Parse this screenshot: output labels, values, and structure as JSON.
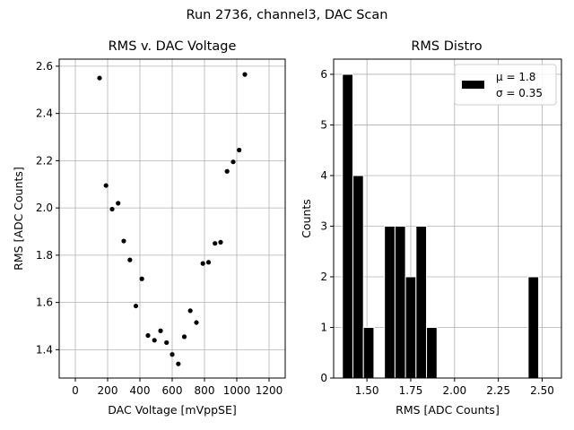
{
  "figure_title": "Run 2736, channel3, DAC Scan",
  "colors": {
    "marker": "#000000",
    "bar_fill": "#000000",
    "bar_edge": "#ffffff",
    "grid": "#b0b0b0"
  },
  "chart_data": [
    {
      "type": "scatter",
      "title": "RMS v. DAC Voltage",
      "xlabel": "DAC Voltage [mVppSE]",
      "ylabel": "RMS [ADC Counts]",
      "xlim": [
        -100,
        1300
      ],
      "ylim": [
        1.28,
        2.63
      ],
      "xticks": [
        0,
        200,
        400,
        600,
        800,
        1000,
        1200
      ],
      "yticks": [
        1.4,
        1.6,
        1.8,
        2.0,
        2.2,
        2.4,
        2.6
      ],
      "xtick_labels": [
        "0",
        "200",
        "400",
        "600",
        "800",
        "1000",
        "1200"
      ],
      "ytick_labels": [
        "1.4",
        "1.6",
        "1.8",
        "2.0",
        "2.2",
        "2.4",
        "2.6"
      ],
      "grid": true,
      "points": [
        {
          "x": 150,
          "y": 2.55
        },
        {
          "x": 190,
          "y": 2.095
        },
        {
          "x": 228,
          "y": 1.995
        },
        {
          "x": 265,
          "y": 2.02
        },
        {
          "x": 300,
          "y": 1.86
        },
        {
          "x": 338,
          "y": 1.78
        },
        {
          "x": 375,
          "y": 1.585
        },
        {
          "x": 412,
          "y": 1.7
        },
        {
          "x": 450,
          "y": 1.46
        },
        {
          "x": 490,
          "y": 1.44
        },
        {
          "x": 528,
          "y": 1.48
        },
        {
          "x": 565,
          "y": 1.43
        },
        {
          "x": 600,
          "y": 1.38
        },
        {
          "x": 638,
          "y": 1.34
        },
        {
          "x": 675,
          "y": 1.455
        },
        {
          "x": 712,
          "y": 1.565
        },
        {
          "x": 750,
          "y": 1.515
        },
        {
          "x": 790,
          "y": 1.765
        },
        {
          "x": 825,
          "y": 1.77
        },
        {
          "x": 865,
          "y": 1.85
        },
        {
          "x": 900,
          "y": 1.855
        },
        {
          "x": 940,
          "y": 2.155
        },
        {
          "x": 978,
          "y": 2.195
        },
        {
          "x": 1015,
          "y": 2.245
        },
        {
          "x": 1050,
          "y": 2.565
        }
      ]
    },
    {
      "type": "bar",
      "title": "RMS Distro",
      "xlabel": "RMS [ADC Counts]",
      "ylabel": "Counts",
      "xlim": [
        1.31,
        2.61
      ],
      "ylim": [
        0,
        6.3
      ],
      "xticks": [
        1.5,
        1.75,
        2.0,
        2.25,
        2.5
      ],
      "yticks": [
        0,
        1,
        2,
        3,
        4,
        5,
        6
      ],
      "xtick_labels": [
        "1.50",
        "1.75",
        "2.00",
        "2.25",
        "2.50"
      ],
      "ytick_labels": [
        "0",
        "1",
        "2",
        "3",
        "4",
        "5",
        "6"
      ],
      "grid": true,
      "bins": [
        {
          "x0": 1.36,
          "x1": 1.42,
          "count": 6
        },
        {
          "x0": 1.42,
          "x1": 1.48,
          "count": 4
        },
        {
          "x0": 1.48,
          "x1": 1.54,
          "count": 1
        },
        {
          "x0": 1.6,
          "x1": 1.66,
          "count": 3
        },
        {
          "x0": 1.66,
          "x1": 1.72,
          "count": 3
        },
        {
          "x0": 1.72,
          "x1": 1.78,
          "count": 2
        },
        {
          "x0": 1.78,
          "x1": 1.84,
          "count": 3
        },
        {
          "x0": 1.84,
          "x1": 1.9,
          "count": 1
        },
        {
          "x0": 2.42,
          "x1": 2.48,
          "count": 2
        }
      ],
      "legend": {
        "placement": "top-right",
        "entries": [
          "μ = 1.8",
          "σ = 0.35"
        ]
      }
    }
  ]
}
